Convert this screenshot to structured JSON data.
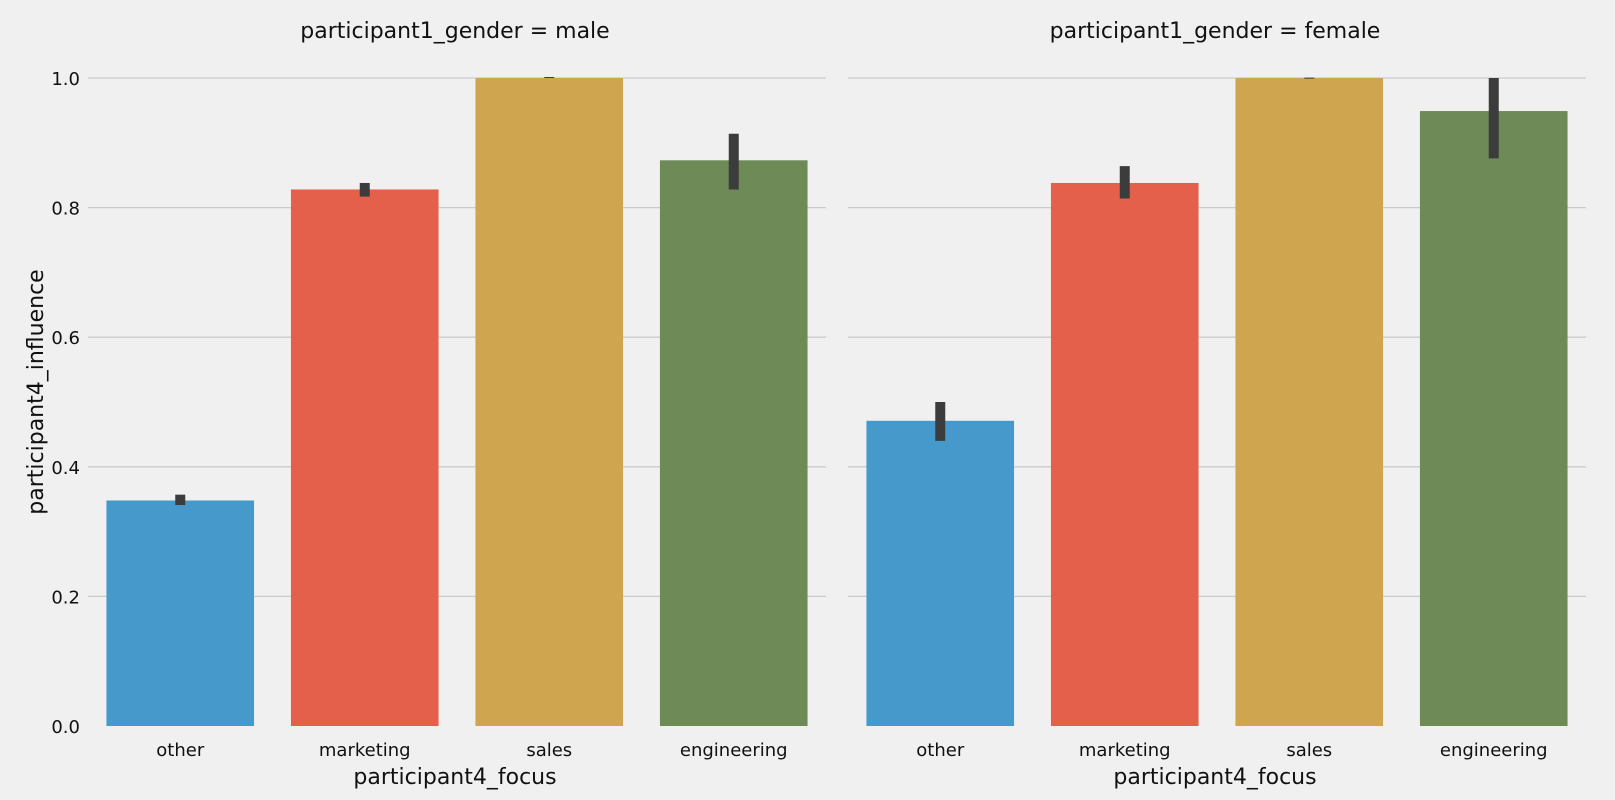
{
  "chart_data": {
    "type": "bar",
    "ylabel": "participant4_influence",
    "ylim": [
      0,
      1.0
    ],
    "yticks": [
      "0.0",
      "0.2",
      "0.4",
      "0.6",
      "0.8",
      "1.0"
    ],
    "grid": true,
    "categories": [
      "other",
      "marketing",
      "sales",
      "engineering"
    ],
    "category_colors": [
      "#459acb",
      "#e5604a",
      "#d0a54f",
      "#6d8a57"
    ],
    "error_bar_color": "#3c3c3c",
    "panels": [
      {
        "title": "participant1_gender = male",
        "xlabel": "participant4_focus",
        "values": [
          0.348,
          0.828,
          1.0,
          0.873
        ],
        "error_low": [
          0.341,
          0.817,
          1.0,
          0.828
        ],
        "error_high": [
          0.357,
          0.838,
          1.0,
          0.914
        ]
      },
      {
        "title": "participant1_gender = female",
        "xlabel": "participant4_focus",
        "values": [
          0.471,
          0.838,
          1.0,
          0.949
        ],
        "error_low": [
          0.44,
          0.814,
          0.999,
          0.876
        ],
        "error_high": [
          0.5,
          0.864,
          1.0,
          1.0
        ]
      }
    ]
  }
}
